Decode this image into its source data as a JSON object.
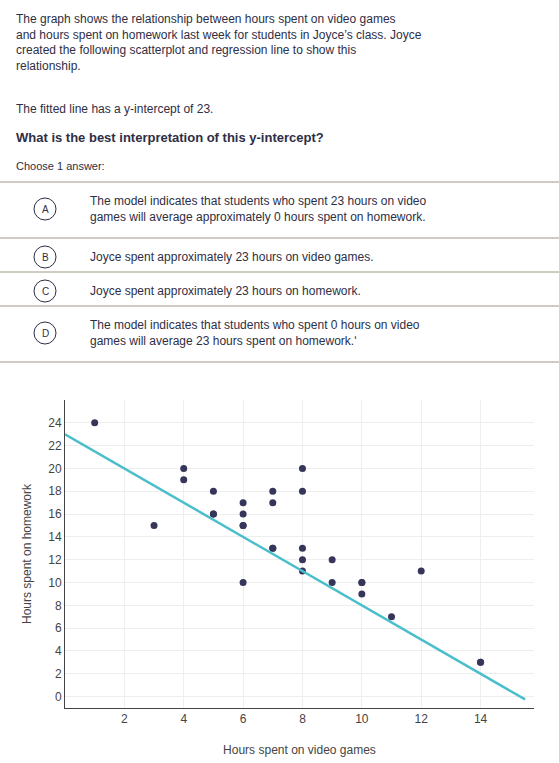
{
  "chart_data": {
    "type": "scatter",
    "annotations": [
      "The graph shows the relationship between hours spent on video games\nand hours spent on homework last week for students in Joyce’s class. Joyce\ncreated the following scatterplot and regression line to show this\nrelationship.",
      "The fitted line has a y-intercept of 23.",
      "What is the best interpretation of this y-intercept?",
      "Choose 1 answer:"
    ],
    "answers": [
      {
        "label": "A",
        "text": "The model indicates that students who spent 23 hours on video\ngames will average approximately 0 hours spent on homework."
      },
      {
        "label": "B",
        "text": "Joyce spent approximately 23 hours on video games."
      },
      {
        "label": "C",
        "text": "Joyce spent approximately 23 hours on homework."
      },
      {
        "label": "D",
        "text": "The model indicates that students who spent 0 hours on video\ngames will average 23 hours spent on homework.ʹ"
      }
    ],
    "xlabel": "Hours spent on video games",
    "ylabel": "Hours spent on homework",
    "series": [
      {
        "type": "scatter",
        "color": "#36365a",
        "x": [
          1,
          3,
          4,
          4,
          5,
          5,
          5,
          6,
          6,
          6,
          6,
          6,
          7,
          7,
          7,
          7,
          8,
          8,
          8,
          8,
          8,
          9,
          9,
          10,
          10,
          10,
          11,
          12,
          14,
          14
        ],
        "values": [
          24,
          15,
          20,
          19,
          18,
          16,
          16,
          17,
          16,
          15,
          15,
          10,
          18,
          17,
          13,
          13,
          20,
          18,
          13,
          12,
          11,
          10,
          12,
          10,
          10,
          9,
          7,
          11,
          3,
          3
        ]
      },
      {
        "type": "line",
        "color": "#4bbecb",
        "x": [
          0,
          15.5
        ],
        "values": [
          23,
          -0.25
        ]
      }
    ],
    "xlim": [
      0,
      15.8
    ],
    "ylim": [
      -1,
      26
    ],
    "xticks": [
      2,
      4,
      6,
      8,
      10,
      12,
      14
    ],
    "yticks": [
      0,
      2,
      4,
      6,
      8,
      10,
      12,
      14,
      16,
      18,
      20,
      22,
      24
    ],
    "grid": true
  }
}
